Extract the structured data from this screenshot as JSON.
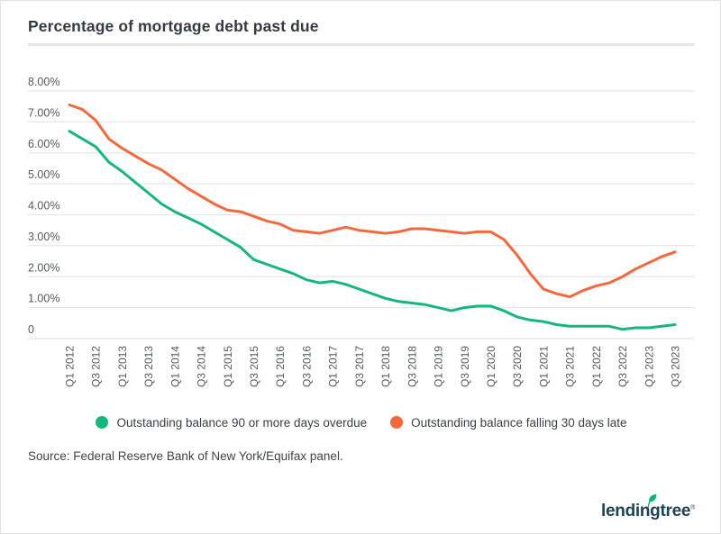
{
  "title": "Percentage of mortgage debt past due",
  "source": "Source: Federal Reserve Bank of New York/Equifax panel.",
  "logo": {
    "text": "lendingtree",
    "reg_mark": "®"
  },
  "colors": {
    "green": "#15b87a",
    "orange": "#f4693b",
    "grid": "#e7e7e7",
    "axis_text": "#54585c",
    "title_text": "#343b42",
    "logo_text": "#1d4355",
    "leaf_green": "#08b878"
  },
  "legend": [
    {
      "label": "Outstanding balance 90 or more days overdue",
      "color": "#15b87a"
    },
    {
      "label": "Outstanding balance falling 30 days late",
      "color": "#f4693b"
    }
  ],
  "chart_data": {
    "type": "line",
    "title": "Percentage of mortgage debt past due",
    "unit": "%",
    "ylim": [
      0,
      8
    ],
    "grid": "horizontal",
    "legend_position": "bottom",
    "y_ticks": [
      "8.00%",
      "7.00%",
      "6.00%",
      "5.00%",
      "4.00%",
      "3.00%",
      "2.00%",
      "1.00%",
      "0"
    ],
    "x": [
      "Q1 2012",
      "Q2 2012",
      "Q3 2012",
      "Q4 2012",
      "Q1 2013",
      "Q2 2013",
      "Q3 2013",
      "Q4 2013",
      "Q1 2014",
      "Q2 2014",
      "Q3 2014",
      "Q4 2014",
      "Q1 2015",
      "Q2 2015",
      "Q3 2015",
      "Q4 2015",
      "Q1 2016",
      "Q2 2016",
      "Q3 2016",
      "Q4 2016",
      "Q1 2017",
      "Q2 2017",
      "Q3 2017",
      "Q4 2017",
      "Q1 2018",
      "Q2 2018",
      "Q3 2018",
      "Q4 2018",
      "Q1 2019",
      "Q2 2019",
      "Q3 2019",
      "Q4 2019",
      "Q1 2020",
      "Q2 2020",
      "Q3 2020",
      "Q4 2020",
      "Q1 2021",
      "Q2 2021",
      "Q3 2021",
      "Q4 2021",
      "Q1 2022",
      "Q2 2022",
      "Q3 2022",
      "Q4 2022",
      "Q1 2023",
      "Q2 2023",
      "Q3 2023"
    ],
    "x_axis_tick_labels": [
      "Q1 2012",
      "Q3 2012",
      "Q1 2013",
      "Q3 2013",
      "Q1 2014",
      "Q3 2014",
      "Q1 2015",
      "Q3 2015",
      "Q1 2016",
      "Q3 2016",
      "Q1 2017",
      "Q3 2017",
      "Q1 2018",
      "Q3 2018",
      "Q1 2019",
      "Q3 2019",
      "Q1 2020",
      "Q3 2020",
      "Q1 2021",
      "Q3 2021",
      "Q1 2022",
      "Q3 2022",
      "Q1 2023",
      "Q3 2023"
    ],
    "series": [
      {
        "name": "Outstanding balance 90 or more days overdue",
        "color": "#15b87a",
        "values": [
          6.7,
          6.45,
          6.2,
          5.7,
          5.4,
          5.05,
          4.7,
          4.35,
          4.1,
          3.9,
          3.7,
          3.45,
          3.2,
          2.95,
          2.55,
          2.4,
          2.25,
          2.1,
          1.9,
          1.8,
          1.85,
          1.75,
          1.6,
          1.45,
          1.3,
          1.2,
          1.15,
          1.1,
          1.0,
          0.9,
          1.0,
          1.05,
          1.05,
          0.9,
          0.7,
          0.6,
          0.55,
          0.45,
          0.4,
          0.4,
          0.4,
          0.4,
          0.3,
          0.35,
          0.35,
          0.4,
          0.45
        ]
      },
      {
        "name": "Outstanding balance falling 30 days late",
        "color": "#f4693b",
        "values": [
          7.55,
          7.4,
          7.05,
          6.45,
          6.15,
          5.9,
          5.65,
          5.45,
          5.15,
          4.85,
          4.6,
          4.35,
          4.15,
          4.1,
          3.95,
          3.8,
          3.7,
          3.5,
          3.45,
          3.4,
          3.5,
          3.6,
          3.5,
          3.45,
          3.4,
          3.45,
          3.55,
          3.55,
          3.5,
          3.45,
          3.4,
          3.45,
          3.45,
          3.2,
          2.7,
          2.1,
          1.6,
          1.45,
          1.35,
          1.55,
          1.7,
          1.8,
          2.0,
          2.25,
          2.45,
          2.65,
          2.8
        ]
      }
    ]
  }
}
